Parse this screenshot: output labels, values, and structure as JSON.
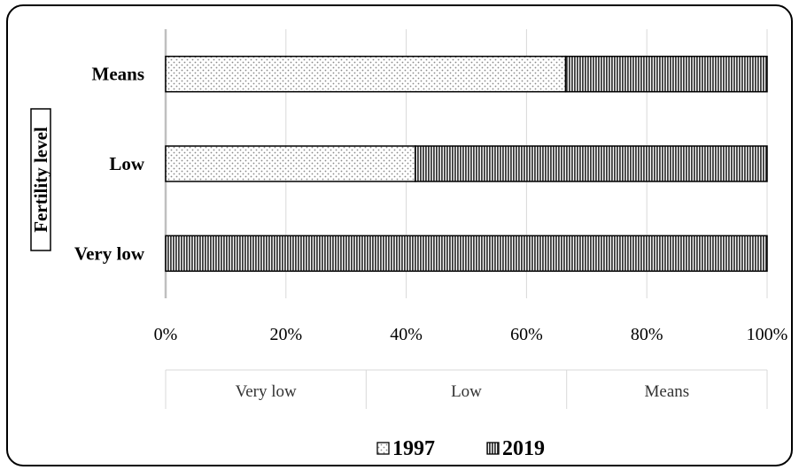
{
  "chart_data": {
    "type": "bar",
    "orientation": "horizontal",
    "stacked": true,
    "percent": true,
    "categories": [
      "Very low",
      "Low",
      "Means"
    ],
    "series": [
      {
        "name": "1997",
        "values": [
          0,
          41.5,
          66.5
        ],
        "pattern": "dots"
      },
      {
        "name": "2019",
        "values": [
          100,
          58.5,
          33.5
        ],
        "pattern": "vertical-lines"
      }
    ],
    "ylabel": "Fertility level",
    "xlim": [
      0,
      100
    ],
    "xticks": [
      "0%",
      "20%",
      "40%",
      "60%",
      "80%",
      "100%"
    ],
    "xtick_values": [
      0,
      20,
      40,
      60,
      80,
      100
    ],
    "category_table": [
      "Very low",
      "Low",
      "Means"
    ],
    "grid": true,
    "legend": "bottom",
    "colors": {
      "dots_bg": "#ffffff",
      "dots_fg": "#8a8a8a",
      "lines_bg": "#ffffff",
      "lines_fg": "#3c3c3c",
      "border": "#000000",
      "grid": "#d9d9d9"
    }
  }
}
